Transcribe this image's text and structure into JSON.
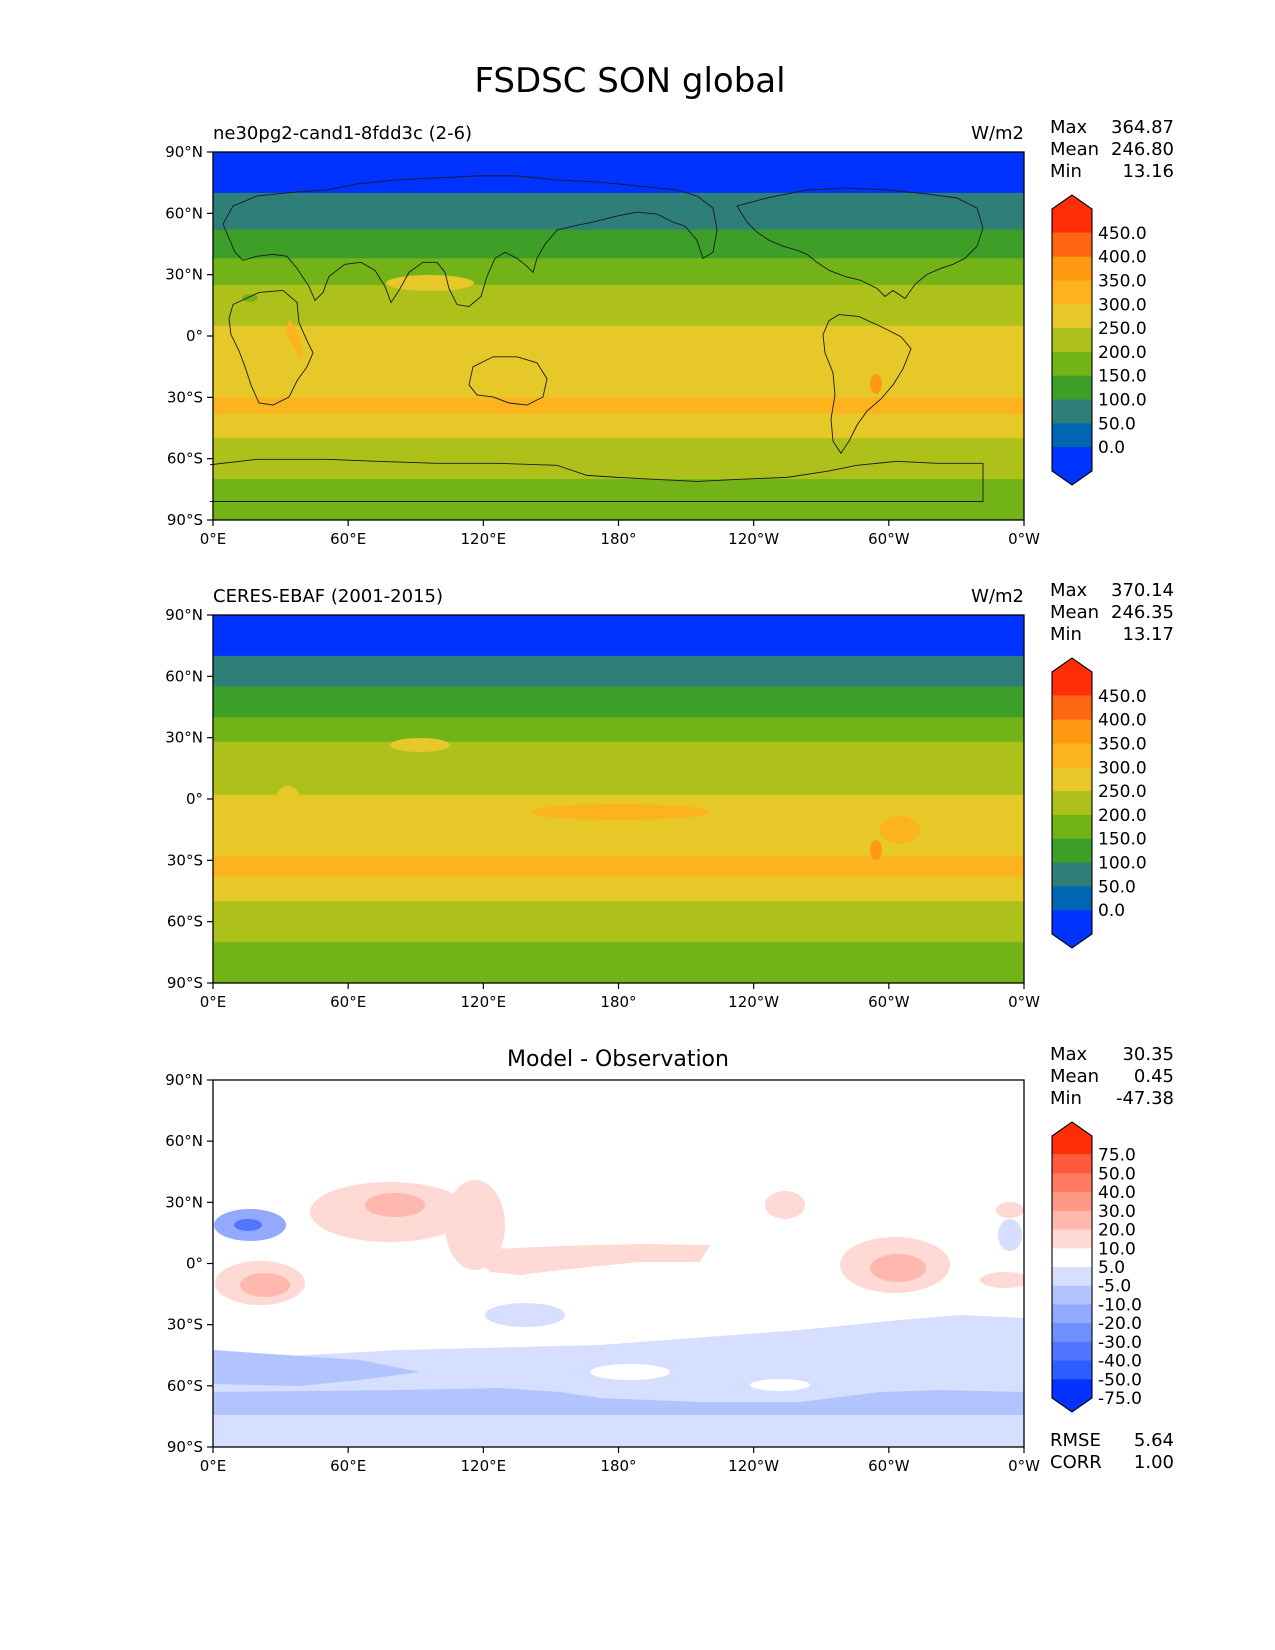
{
  "title": "FSDSC SON global",
  "colors": {
    "sequential": [
      "#0033ff",
      "#0066b3",
      "#2e7f77",
      "#3d9f28",
      "#72b418",
      "#aec11b",
      "#e6c928",
      "#fcb31e",
      "#ff9913",
      "#ff6613",
      "#ff2e08"
    ],
    "diverging": [
      "#0433ff",
      "#2d5cff",
      "#5075ff",
      "#708fff",
      "#92a9ff",
      "#b2c4ff",
      "#d6dfff",
      "#ffffff",
      "#ffd9d4",
      "#ffb8ad",
      "#ff9987",
      "#ff7a61",
      "#ff5a3d",
      "#ff2e08"
    ]
  },
  "panels": [
    {
      "id": "model",
      "left_title": "ne30pg2-cand1-8fdd3c (2-6)",
      "center_title": "",
      "units": "W/m2",
      "stats": {
        "max_label": "Max",
        "max": "364.87",
        "mean_label": "Mean",
        "mean": "246.80",
        "min_label": "Min",
        "min": "13.16"
      },
      "colorbar": {
        "ticks": [
          "450.0",
          "400.0",
          "350.0",
          "300.0",
          "250.0",
          "200.0",
          "150.0",
          "100.0",
          "50.0",
          "0.0"
        ]
      },
      "field": {
        "latitude_edges": [
          90,
          70,
          52,
          38,
          25,
          5,
          -30,
          -38,
          -45,
          -50,
          -60,
          -70,
          -80,
          -90
        ],
        "value_classes": [
          0,
          2,
          3,
          4,
          5,
          6,
          7,
          6,
          6,
          5,
          5,
          4,
          4
        ]
      }
    },
    {
      "id": "obs",
      "left_title": "CERES-EBAF (2001-2015)",
      "center_title": "",
      "units": "W/m2",
      "stats": {
        "max_label": "Max",
        "max": "370.14",
        "mean_label": "Mean",
        "mean": "246.35",
        "min_label": "Min",
        "min": "13.17"
      },
      "colorbar": {
        "ticks": [
          "450.0",
          "400.0",
          "350.0",
          "300.0",
          "250.0",
          "200.0",
          "150.0",
          "100.0",
          "50.0",
          "0.0"
        ]
      },
      "field": {
        "latitude_edges": [
          90,
          70,
          55,
          40,
          28,
          2,
          -28,
          -38,
          -45,
          -50,
          -62,
          -70,
          -80,
          -90
        ],
        "value_classes": [
          0,
          2,
          3,
          4,
          5,
          6,
          7,
          6,
          6,
          5,
          5,
          4,
          4
        ]
      }
    },
    {
      "id": "diff",
      "left_title": "",
      "center_title": "Model - Observation",
      "units": "",
      "stats": {
        "max_label": "Max",
        "max": "30.35",
        "mean_label": "Mean",
        "mean": "0.45",
        "min_label": "Min",
        "min": "-47.38"
      },
      "colorbar": {
        "ticks": [
          "75.0",
          "50.0",
          "40.0",
          "30.0",
          "20.0",
          "10.0",
          "5.0",
          "-5.0",
          "-10.0",
          "-20.0",
          "-30.0",
          "-40.0",
          "-50.0",
          "-75.0"
        ]
      },
      "error_stats": {
        "rmse_label": "RMSE",
        "rmse": "5.64",
        "corr_label": "CORR",
        "corr": "1.00"
      }
    }
  ],
  "axes": {
    "xticks": [
      "0°E",
      "60°E",
      "120°E",
      "180°",
      "120°W",
      "60°W",
      "0°W"
    ],
    "yticks": [
      "90°N",
      "60°N",
      "30°N",
      "0°",
      "30°S",
      "60°S",
      "90°S"
    ]
  }
}
